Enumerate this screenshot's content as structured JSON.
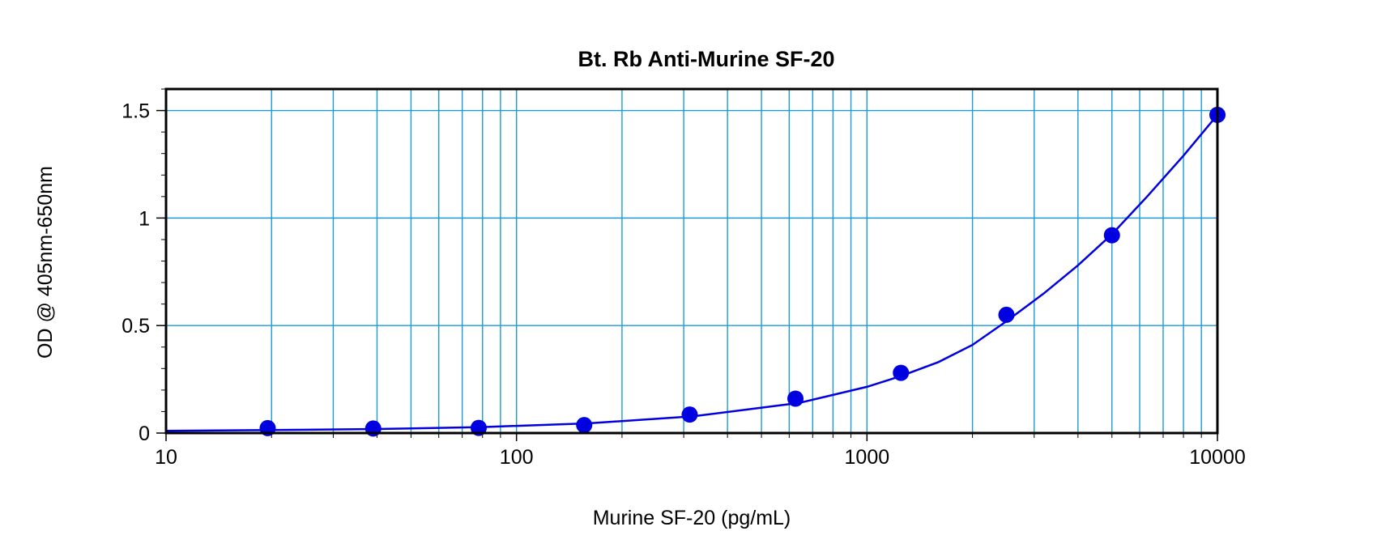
{
  "chart_data": {
    "type": "scatter",
    "title": "Bt. Rb Anti-Murine SF-20",
    "xlabel": "Murine SF-20 (pg/mL)",
    "ylabel": "OD @ 405nm-650nm",
    "xscale": "log",
    "xlim": [
      10,
      10000
    ],
    "ylim": [
      0,
      1.6
    ],
    "grid": true,
    "x_ticks": [
      "10",
      "100",
      "1000",
      "10000"
    ],
    "y_ticks": [
      "0",
      "0.5",
      "1",
      "1.5"
    ],
    "series": [
      {
        "color": "#0000e0",
        "points": [
          {
            "x": 19.5,
            "y": 0.023
          },
          {
            "x": 39,
            "y": 0.021
          },
          {
            "x": 78,
            "y": 0.024
          },
          {
            "x": 156,
            "y": 0.037
          },
          {
            "x": 312,
            "y": 0.086
          },
          {
            "x": 625,
            "y": 0.16
          },
          {
            "x": 1250,
            "y": 0.28
          },
          {
            "x": 2500,
            "y": 0.55
          },
          {
            "x": 5000,
            "y": 0.92
          },
          {
            "x": 10000,
            "y": 1.48
          }
        ],
        "fit_curve": [
          {
            "x": 10,
            "y": 0.01
          },
          {
            "x": 20,
            "y": 0.014
          },
          {
            "x": 40,
            "y": 0.019
          },
          {
            "x": 80,
            "y": 0.028
          },
          {
            "x": 160,
            "y": 0.045
          },
          {
            "x": 320,
            "y": 0.078
          },
          {
            "x": 640,
            "y": 0.14
          },
          {
            "x": 1000,
            "y": 0.215
          },
          {
            "x": 1250,
            "y": 0.265
          },
          {
            "x": 1600,
            "y": 0.33
          },
          {
            "x": 2000,
            "y": 0.41
          },
          {
            "x": 2500,
            "y": 0.52
          },
          {
            "x": 3200,
            "y": 0.65
          },
          {
            "x": 4000,
            "y": 0.78
          },
          {
            "x": 5000,
            "y": 0.925
          },
          {
            "x": 6300,
            "y": 1.1
          },
          {
            "x": 8000,
            "y": 1.29
          },
          {
            "x": 10000,
            "y": 1.48
          }
        ]
      }
    ],
    "colors": {
      "grid": "#1a9bd7",
      "series": "#0000e0",
      "frame": "#000000"
    }
  }
}
